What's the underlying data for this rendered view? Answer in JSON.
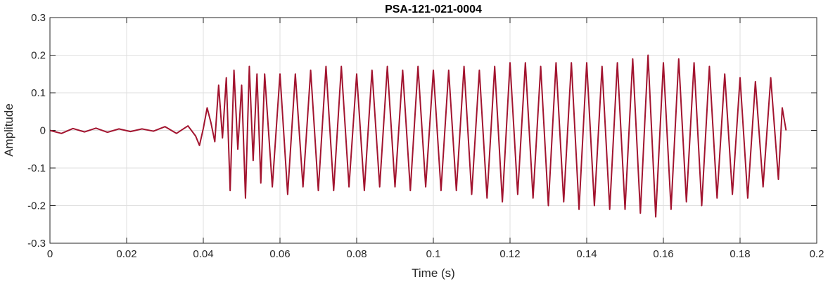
{
  "chart_data": {
    "type": "line",
    "title": "PSA-121-021-0004",
    "xlabel": "Time (s)",
    "ylabel": "Amplitude",
    "xlim": [
      0,
      0.2
    ],
    "ylim": [
      -0.3,
      0.3
    ],
    "grid": true,
    "legend": "none",
    "line_color": "#a2142f",
    "x_ticks": [
      "0",
      "0.02",
      "0.04",
      "0.06",
      "0.08",
      "0.1",
      "0.12",
      "0.14",
      "0.16",
      "0.18",
      "0.2"
    ],
    "y_ticks": [
      "-0.3",
      "-0.2",
      "-0.1",
      "0",
      "0.1",
      "0.2",
      "0.3"
    ],
    "series": [
      {
        "x": [
          0,
          0.003,
          0.006,
          0.009,
          0.012,
          0.015,
          0.018,
          0.021,
          0.024,
          0.027,
          0.03,
          0.033,
          0.036,
          0.038,
          0.039,
          0.04,
          0.041,
          0.042,
          0.043,
          0.044,
          0.045,
          0.046,
          0.047,
          0.048,
          0.049,
          0.05,
          0.051,
          0.052,
          0.053,
          0.054,
          0.055,
          0.056,
          0.058,
          0.06,
          0.062,
          0.064,
          0.066,
          0.068,
          0.07,
          0.072,
          0.074,
          0.076,
          0.078,
          0.08,
          0.082,
          0.084,
          0.086,
          0.088,
          0.09,
          0.092,
          0.094,
          0.096,
          0.098,
          0.1,
          0.102,
          0.104,
          0.106,
          0.108,
          0.11,
          0.112,
          0.114,
          0.116,
          0.118,
          0.12,
          0.122,
          0.124,
          0.126,
          0.128,
          0.13,
          0.132,
          0.134,
          0.136,
          0.138,
          0.14,
          0.142,
          0.144,
          0.146,
          0.148,
          0.15,
          0.152,
          0.154,
          0.156,
          0.158,
          0.16,
          0.162,
          0.164,
          0.166,
          0.168,
          0.17,
          0.172,
          0.174,
          0.176,
          0.178,
          0.18,
          0.182,
          0.184,
          0.186,
          0.188,
          0.19,
          0.191,
          0.192
        ],
        "y": [
          0,
          -0.008,
          0.005,
          -0.004,
          0.006,
          -0.005,
          0.004,
          -0.003,
          0.004,
          -0.002,
          0.01,
          -0.008,
          0.012,
          -0.015,
          -0.04,
          0.005,
          0.06,
          0.02,
          -0.03,
          0.12,
          -0.02,
          0.14,
          -0.16,
          0.16,
          -0.05,
          0.12,
          -0.18,
          0.17,
          -0.08,
          0.15,
          -0.14,
          0.15,
          -0.15,
          0.15,
          -0.17,
          0.15,
          -0.15,
          0.16,
          -0.16,
          0.17,
          -0.16,
          0.17,
          -0.15,
          0.15,
          -0.16,
          0.16,
          -0.15,
          0.17,
          -0.15,
          0.16,
          -0.16,
          0.17,
          -0.15,
          0.16,
          -0.16,
          0.16,
          -0.16,
          0.17,
          -0.17,
          0.16,
          -0.18,
          0.17,
          -0.19,
          0.18,
          -0.17,
          0.18,
          -0.18,
          0.17,
          -0.2,
          0.18,
          -0.19,
          0.18,
          -0.21,
          0.18,
          -0.2,
          0.17,
          -0.21,
          0.18,
          -0.21,
          0.19,
          -0.22,
          0.2,
          -0.23,
          0.18,
          -0.21,
          0.19,
          -0.19,
          0.18,
          -0.2,
          0.17,
          -0.18,
          0.15,
          -0.17,
          0.14,
          -0.18,
          0.13,
          -0.15,
          0.14,
          -0.13,
          0.06,
          0
        ]
      }
    ]
  }
}
